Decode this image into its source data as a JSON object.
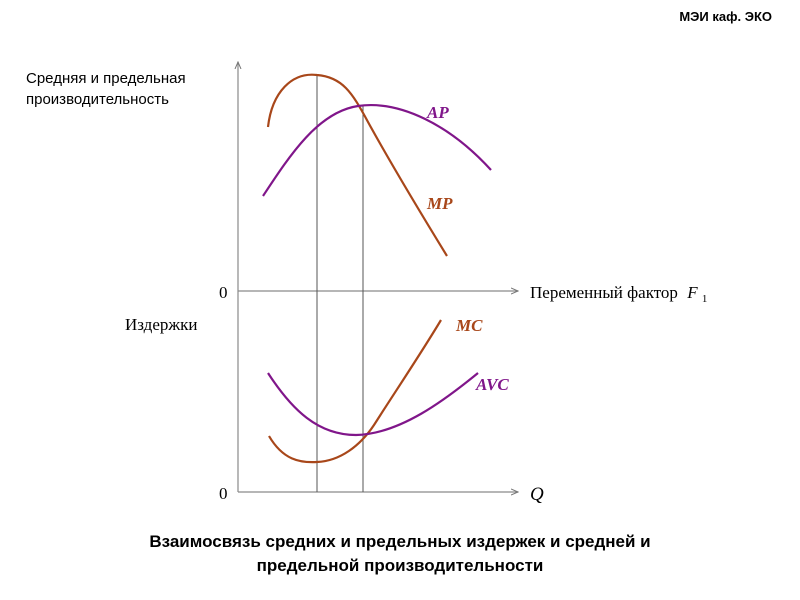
{
  "header": {
    "text": "МЭИ каф. ЭКО"
  },
  "upper_axis": {
    "y_label_line1": "Средняя и предельная",
    "y_label_line2": "производительность",
    "x_label": "Переменный фактор",
    "x_label_symbol": "F",
    "x_label_subscript": "1",
    "origin": "0"
  },
  "lower_axis": {
    "y_label": "Издержки",
    "x_label": "Q",
    "origin": "0"
  },
  "curves": {
    "ap": {
      "label": "AP",
      "color": "#80168a"
    },
    "mp": {
      "label": "MP",
      "color": "#a8471a"
    },
    "mc": {
      "label": "MC",
      "color": "#a8471a"
    },
    "avc": {
      "label": "AVC",
      "color": "#80168a"
    }
  },
  "caption": {
    "line1": "Взаимосвязь средних и предельных издержек и средней и",
    "line2": "предельной производительности"
  }
}
